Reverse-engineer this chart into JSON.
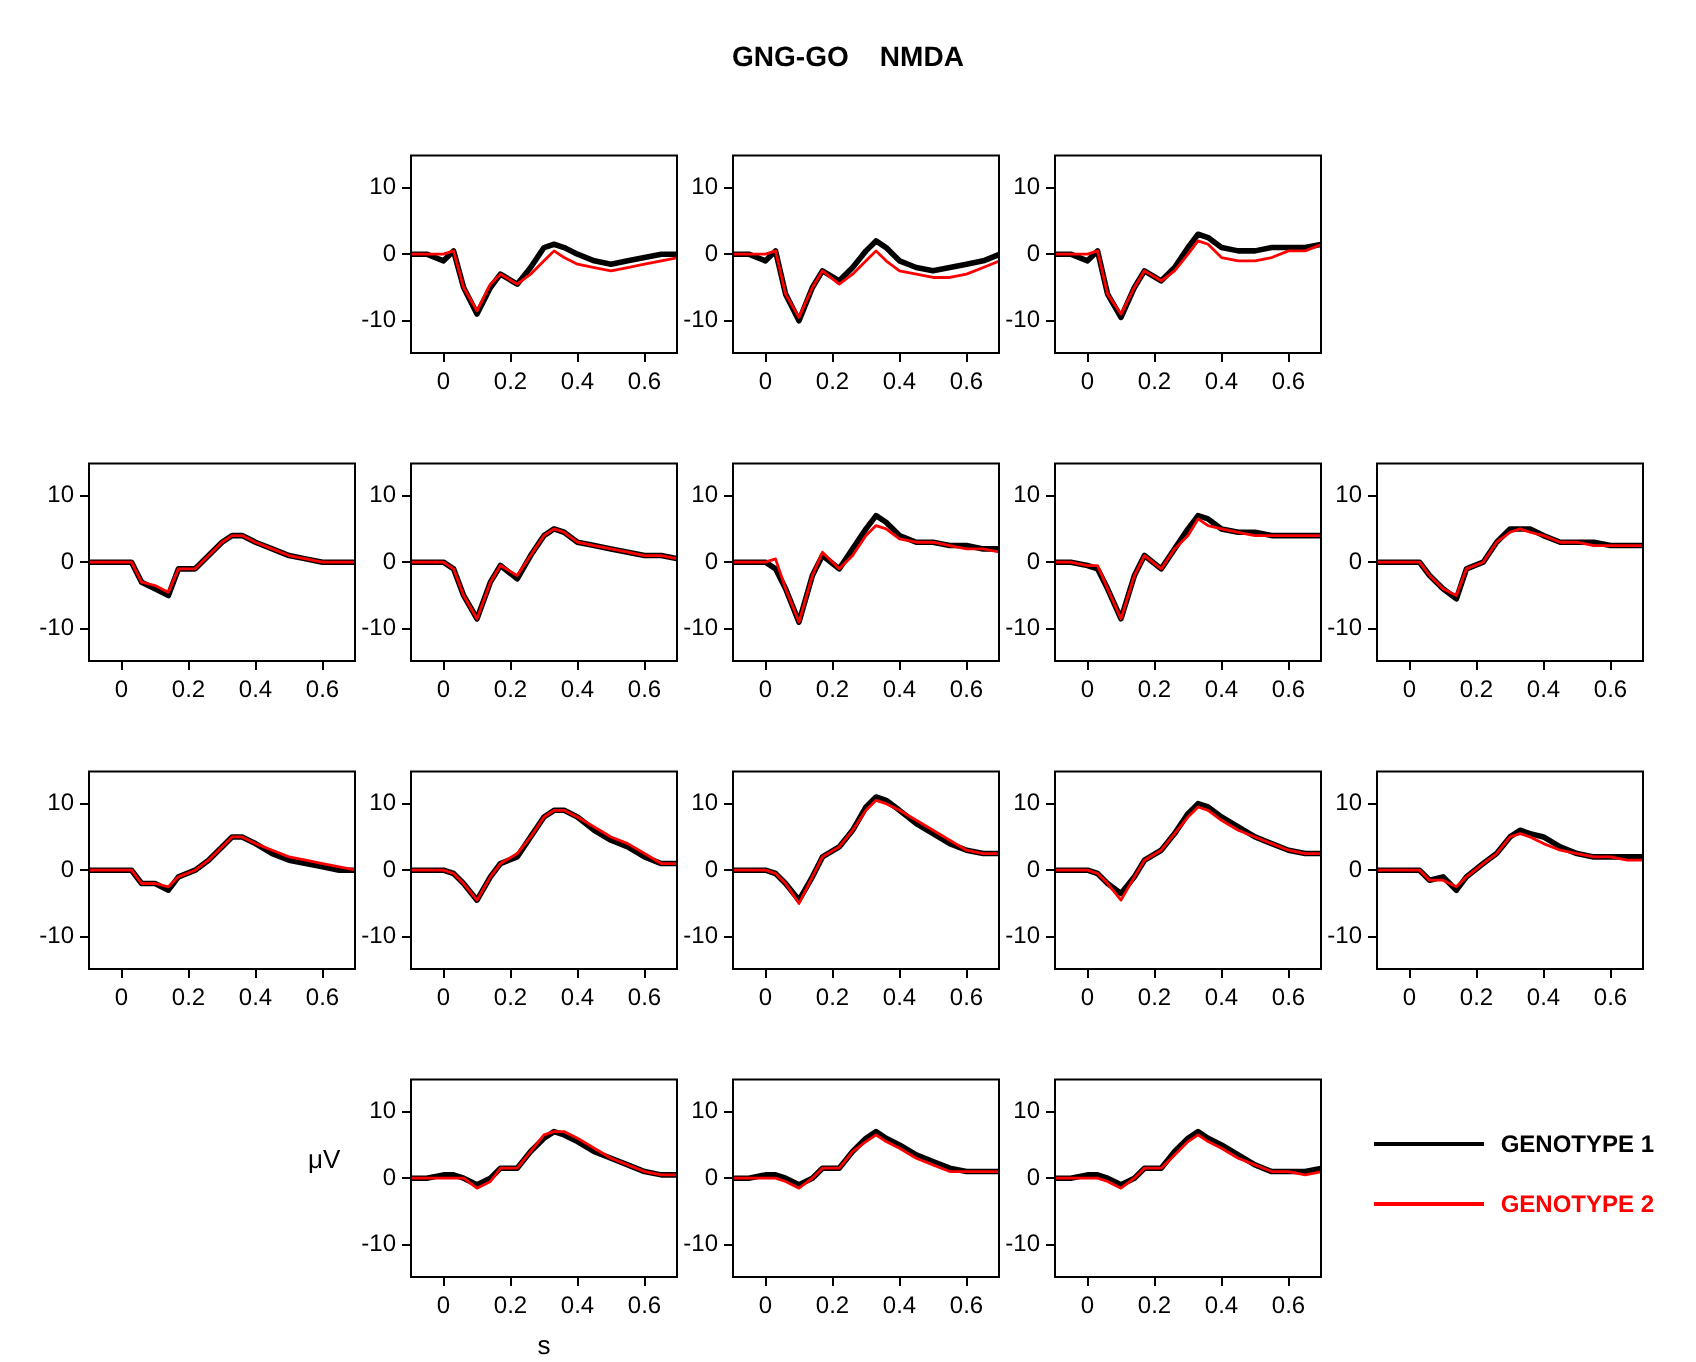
{
  "chart_data": [
    {
      "type": "line",
      "x": [
        -0.1,
        -0.05,
        0,
        0.03,
        0.06,
        0.1,
        0.14,
        0.17,
        0.22,
        0.26,
        0.3,
        0.33,
        0.36,
        0.4,
        0.45,
        0.5,
        0.55,
        0.6,
        0.65,
        0.7
      ],
      "xlim": [
        -0.1,
        0.7
      ],
      "xticks": [
        0,
        0.2,
        0.4,
        0.6
      ],
      "ylim": [
        -15,
        15
      ],
      "yticks": [
        -10,
        0,
        10
      ],
      "grid": false,
      "legend": false,
      "marker": "none",
      "line_style": "solid",
      "series": [
        {
          "color": "#000000",
          "values": [
            0,
            0,
            -1,
            0.5,
            -5,
            -9,
            -5,
            -3,
            -4.5,
            -2,
            1,
            1.5,
            1,
            0,
            -1,
            -1.5,
            -1,
            -0.5,
            0,
            0
          ]
        },
        {
          "color": "#ff0000",
          "values": [
            0,
            0,
            0,
            0.5,
            -5,
            -8.5,
            -4.5,
            -3,
            -4.5,
            -3,
            -1,
            0.5,
            -0.5,
            -1.5,
            -2,
            -2.5,
            -2,
            -1.5,
            -1,
            -0.5
          ]
        }
      ]
    },
    {
      "type": "line",
      "x": [
        -0.1,
        -0.05,
        0,
        0.03,
        0.06,
        0.1,
        0.14,
        0.17,
        0.22,
        0.26,
        0.3,
        0.33,
        0.36,
        0.4,
        0.45,
        0.5,
        0.55,
        0.6,
        0.65,
        0.7
      ],
      "xlim": [
        -0.1,
        0.7
      ],
      "xticks": [
        0,
        0.2,
        0.4,
        0.6
      ],
      "ylim": [
        -15,
        15
      ],
      "yticks": [
        -10,
        0,
        10
      ],
      "grid": false,
      "legend": false,
      "marker": "none",
      "line_style": "solid",
      "title": "GNG-GO    NMDA",
      "series": [
        {
          "color": "#000000",
          "values": [
            0,
            0,
            -1,
            0.5,
            -6,
            -10,
            -5,
            -2.5,
            -4,
            -2,
            0.5,
            2,
            1,
            -1,
            -2,
            -2.5,
            -2,
            -1.5,
            -1,
            0
          ]
        },
        {
          "color": "#ff0000",
          "values": [
            0,
            0,
            0,
            0.5,
            -6,
            -9.5,
            -5,
            -2.5,
            -4.5,
            -3,
            -1,
            0.5,
            -1,
            -2.5,
            -3,
            -3.5,
            -3.5,
            -3,
            -2,
            -1
          ]
        }
      ]
    },
    {
      "type": "line",
      "x": [
        -0.1,
        -0.05,
        0,
        0.03,
        0.06,
        0.1,
        0.14,
        0.17,
        0.22,
        0.26,
        0.3,
        0.33,
        0.36,
        0.4,
        0.45,
        0.5,
        0.55,
        0.6,
        0.65,
        0.7
      ],
      "xlim": [
        -0.1,
        0.7
      ],
      "xticks": [
        0,
        0.2,
        0.4,
        0.6
      ],
      "ylim": [
        -15,
        15
      ],
      "yticks": [
        -10,
        0,
        10
      ],
      "grid": false,
      "legend": false,
      "marker": "none",
      "line_style": "solid",
      "series": [
        {
          "color": "#000000",
          "values": [
            0,
            0,
            -1,
            0.5,
            -6,
            -9.5,
            -5,
            -2.5,
            -4,
            -2,
            1,
            3,
            2.5,
            1,
            0.5,
            0.5,
            1,
            1,
            1,
            1.5
          ]
        },
        {
          "color": "#ff0000",
          "values": [
            0,
            0,
            0,
            0.5,
            -6,
            -9,
            -5,
            -2.5,
            -4,
            -2.5,
            0,
            2,
            1.5,
            -0.5,
            -1,
            -1,
            -0.5,
            0.5,
            0.5,
            1.5
          ]
        }
      ]
    },
    {
      "type": "line",
      "x": [
        -0.1,
        -0.05,
        0,
        0.03,
        0.06,
        0.1,
        0.14,
        0.17,
        0.22,
        0.26,
        0.3,
        0.33,
        0.36,
        0.4,
        0.45,
        0.5,
        0.55,
        0.6,
        0.65,
        0.7
      ],
      "xlim": [
        -0.1,
        0.7
      ],
      "xticks": [
        0,
        0.2,
        0.4,
        0.6
      ],
      "ylim": [
        -15,
        15
      ],
      "yticks": [
        -10,
        0,
        10
      ],
      "grid": false,
      "legend": false,
      "marker": "none",
      "line_style": "solid",
      "series": [
        {
          "color": "#000000",
          "values": [
            0,
            0,
            0,
            0,
            -3,
            -4,
            -5,
            -1,
            -1,
            1,
            3,
            4,
            4,
            3,
            2,
            1,
            0.5,
            0,
            0,
            0
          ]
        },
        {
          "color": "#ff0000",
          "values": [
            0,
            0,
            0,
            0,
            -3,
            -3.5,
            -4.5,
            -1,
            -1,
            1,
            3,
            4,
            4,
            3,
            2,
            1,
            0.5,
            0,
            0,
            0
          ]
        }
      ]
    },
    {
      "type": "line",
      "x": [
        -0.1,
        -0.05,
        0,
        0.03,
        0.06,
        0.1,
        0.14,
        0.17,
        0.22,
        0.26,
        0.3,
        0.33,
        0.36,
        0.4,
        0.45,
        0.5,
        0.55,
        0.6,
        0.65,
        0.7
      ],
      "xlim": [
        -0.1,
        0.7
      ],
      "xticks": [
        0,
        0.2,
        0.4,
        0.6
      ],
      "ylim": [
        -15,
        15
      ],
      "yticks": [
        -10,
        0,
        10
      ],
      "grid": false,
      "legend": false,
      "marker": "none",
      "line_style": "solid",
      "series": [
        {
          "color": "#000000",
          "values": [
            0,
            0,
            0,
            -1,
            -5,
            -8.5,
            -3,
            -0.5,
            -2.5,
            1,
            4,
            5,
            4.5,
            3,
            2.5,
            2,
            1.5,
            1,
            1,
            0.5
          ]
        },
        {
          "color": "#ff0000",
          "values": [
            0,
            0,
            0,
            -1,
            -5,
            -8.5,
            -3,
            -0.5,
            -2,
            1,
            4,
            5,
            4.5,
            3,
            2.5,
            2,
            1.5,
            1,
            1,
            0.5
          ]
        }
      ]
    },
    {
      "type": "line",
      "x": [
        -0.1,
        -0.05,
        0,
        0.03,
        0.06,
        0.1,
        0.14,
        0.17,
        0.22,
        0.26,
        0.3,
        0.33,
        0.36,
        0.4,
        0.45,
        0.5,
        0.55,
        0.6,
        0.65,
        0.7
      ],
      "xlim": [
        -0.1,
        0.7
      ],
      "xticks": [
        0,
        0.2,
        0.4,
        0.6
      ],
      "ylim": [
        -15,
        15
      ],
      "yticks": [
        -10,
        0,
        10
      ],
      "grid": false,
      "legend": false,
      "marker": "none",
      "line_style": "solid",
      "series": [
        {
          "color": "#000000",
          "values": [
            0,
            0,
            0,
            -1,
            -4,
            -9,
            -2,
            1,
            -1,
            2,
            5,
            7,
            6,
            4,
            3,
            3,
            2.5,
            2.5,
            2,
            2
          ]
        },
        {
          "color": "#ff0000",
          "values": [
            0,
            0,
            0,
            0.5,
            -4,
            -9,
            -2,
            1.5,
            -1,
            1,
            4,
            5.5,
            5,
            3.5,
            3,
            3,
            2.5,
            2,
            2,
            1.5
          ]
        }
      ]
    },
    {
      "type": "line",
      "x": [
        -0.1,
        -0.05,
        0,
        0.03,
        0.06,
        0.1,
        0.14,
        0.17,
        0.22,
        0.26,
        0.3,
        0.33,
        0.36,
        0.4,
        0.45,
        0.5,
        0.55,
        0.6,
        0.65,
        0.7
      ],
      "xlim": [
        -0.1,
        0.7
      ],
      "xticks": [
        0,
        0.2,
        0.4,
        0.6
      ],
      "ylim": [
        -15,
        15
      ],
      "yticks": [
        -10,
        0,
        10
      ],
      "grid": false,
      "legend": false,
      "marker": "none",
      "line_style": "solid",
      "series": [
        {
          "color": "#000000",
          "values": [
            0,
            0,
            -0.5,
            -1,
            -4,
            -8.5,
            -2,
            1,
            -1,
            2,
            5,
            7,
            6.5,
            5,
            4.5,
            4.5,
            4,
            4,
            4,
            4
          ]
        },
        {
          "color": "#ff0000",
          "values": [
            0,
            0,
            -0.5,
            -0.5,
            -4,
            -8.5,
            -2,
            1,
            -1,
            2,
            4,
            6.5,
            5.5,
            5,
            4.5,
            4,
            4,
            4,
            4,
            4
          ]
        }
      ]
    },
    {
      "type": "line",
      "x": [
        -0.1,
        -0.05,
        0,
        0.03,
        0.06,
        0.1,
        0.14,
        0.17,
        0.22,
        0.26,
        0.3,
        0.33,
        0.36,
        0.4,
        0.45,
        0.5,
        0.55,
        0.6,
        0.65,
        0.7
      ],
      "xlim": [
        -0.1,
        0.7
      ],
      "xticks": [
        0,
        0.2,
        0.4,
        0.6
      ],
      "ylim": [
        -15,
        15
      ],
      "yticks": [
        -10,
        0,
        10
      ],
      "grid": false,
      "legend": false,
      "marker": "none",
      "line_style": "solid",
      "series": [
        {
          "color": "#000000",
          "values": [
            0,
            0,
            0,
            0,
            -2,
            -4,
            -5.5,
            -1,
            0,
            3,
            5,
            5,
            5,
            4,
            3,
            3,
            3,
            2.5,
            2.5,
            2.5
          ]
        },
        {
          "color": "#ff0000",
          "values": [
            0,
            0,
            0,
            0,
            -2,
            -4,
            -5,
            -1,
            0,
            3,
            4.5,
            5,
            4.5,
            4,
            3,
            3,
            2.5,
            2.5,
            2.5,
            2.5
          ]
        }
      ]
    },
    {
      "type": "line",
      "x": [
        -0.1,
        -0.05,
        0,
        0.03,
        0.06,
        0.1,
        0.14,
        0.17,
        0.22,
        0.26,
        0.3,
        0.33,
        0.36,
        0.4,
        0.45,
        0.5,
        0.55,
        0.6,
        0.65,
        0.7
      ],
      "xlim": [
        -0.1,
        0.7
      ],
      "xticks": [
        0,
        0.2,
        0.4,
        0.6
      ],
      "ylim": [
        -15,
        15
      ],
      "yticks": [
        -10,
        0,
        10
      ],
      "grid": false,
      "legend": false,
      "marker": "none",
      "line_style": "solid",
      "series": [
        {
          "color": "#000000",
          "values": [
            0,
            0,
            0,
            0,
            -2,
            -2,
            -3,
            -1,
            0,
            1.5,
            3.5,
            5,
            5,
            4,
            2.5,
            1.5,
            1,
            0.5,
            0,
            0
          ]
        },
        {
          "color": "#ff0000",
          "values": [
            0,
            0,
            0,
            0,
            -2,
            -2,
            -2.5,
            -1,
            0,
            1.5,
            3.5,
            5,
            5,
            4,
            3,
            2,
            1.5,
            1,
            0.5,
            0
          ]
        }
      ]
    },
    {
      "type": "line",
      "x": [
        -0.1,
        -0.05,
        0,
        0.03,
        0.06,
        0.1,
        0.14,
        0.17,
        0.22,
        0.26,
        0.3,
        0.33,
        0.36,
        0.4,
        0.45,
        0.5,
        0.55,
        0.6,
        0.65,
        0.7
      ],
      "xlim": [
        -0.1,
        0.7
      ],
      "xticks": [
        0,
        0.2,
        0.4,
        0.6
      ],
      "ylim": [
        -15,
        15
      ],
      "yticks": [
        -10,
        0,
        10
      ],
      "grid": false,
      "legend": false,
      "marker": "none",
      "line_style": "solid",
      "series": [
        {
          "color": "#000000",
          "values": [
            0,
            0,
            0,
            -0.5,
            -2,
            -4.5,
            -1,
            1,
            2,
            5,
            8,
            9,
            9,
            8,
            6,
            4.5,
            3.5,
            2,
            1,
            1
          ]
        },
        {
          "color": "#ff0000",
          "values": [
            0,
            0,
            0,
            -0.5,
            -2,
            -4.5,
            -1,
            1,
            2.5,
            5,
            8,
            9,
            9,
            8,
            6.5,
            5,
            4,
            2.5,
            1,
            1
          ]
        }
      ]
    },
    {
      "type": "line",
      "x": [
        -0.1,
        -0.05,
        0,
        0.03,
        0.06,
        0.1,
        0.14,
        0.17,
        0.22,
        0.26,
        0.3,
        0.33,
        0.36,
        0.4,
        0.45,
        0.5,
        0.55,
        0.6,
        0.65,
        0.7
      ],
      "xlim": [
        -0.1,
        0.7
      ],
      "xticks": [
        0,
        0.2,
        0.4,
        0.6
      ],
      "ylim": [
        -15,
        15
      ],
      "yticks": [
        -10,
        0,
        10
      ],
      "grid": false,
      "legend": false,
      "marker": "none",
      "line_style": "solid",
      "series": [
        {
          "color": "#000000",
          "values": [
            0,
            0,
            0,
            -0.5,
            -2,
            -4.5,
            -1,
            2,
            3.5,
            6,
            9.5,
            11,
            10.5,
            9,
            7,
            5.5,
            4,
            3,
            2.5,
            2.5
          ]
        },
        {
          "color": "#ff0000",
          "values": [
            0,
            0,
            0,
            -0.5,
            -2,
            -5,
            -1,
            2,
            3.5,
            6,
            9,
            10.5,
            10,
            9,
            7.5,
            6,
            4.5,
            3,
            2.5,
            2.5
          ]
        }
      ]
    },
    {
      "type": "line",
      "x": [
        -0.1,
        -0.05,
        0,
        0.03,
        0.06,
        0.1,
        0.14,
        0.17,
        0.22,
        0.26,
        0.3,
        0.33,
        0.36,
        0.4,
        0.45,
        0.5,
        0.55,
        0.6,
        0.65,
        0.7
      ],
      "xlim": [
        -0.1,
        0.7
      ],
      "xticks": [
        0,
        0.2,
        0.4,
        0.6
      ],
      "ylim": [
        -15,
        15
      ],
      "yticks": [
        -10,
        0,
        10
      ],
      "grid": false,
      "legend": false,
      "marker": "none",
      "line_style": "solid",
      "series": [
        {
          "color": "#000000",
          "values": [
            0,
            0,
            0,
            -0.5,
            -2,
            -3.5,
            -1,
            1.5,
            3,
            5.5,
            8.5,
            10,
            9.5,
            8,
            6.5,
            5,
            4,
            3,
            2.5,
            2.5
          ]
        },
        {
          "color": "#ff0000",
          "values": [
            0,
            0,
            0,
            -0.5,
            -2,
            -4.5,
            -1,
            1.5,
            3,
            5.5,
            8,
            9.5,
            9,
            7.5,
            6,
            5,
            4,
            3,
            2.5,
            2.5
          ]
        }
      ]
    },
    {
      "type": "line",
      "x": [
        -0.1,
        -0.05,
        0,
        0.03,
        0.06,
        0.1,
        0.14,
        0.17,
        0.22,
        0.26,
        0.3,
        0.33,
        0.36,
        0.4,
        0.45,
        0.5,
        0.55,
        0.6,
        0.65,
        0.7
      ],
      "xlim": [
        -0.1,
        0.7
      ],
      "xticks": [
        0,
        0.2,
        0.4,
        0.6
      ],
      "ylim": [
        -15,
        15
      ],
      "yticks": [
        -10,
        0,
        10
      ],
      "grid": false,
      "legend": false,
      "marker": "none",
      "line_style": "solid",
      "series": [
        {
          "color": "#000000",
          "values": [
            0,
            0,
            0,
            0,
            -1.5,
            -1,
            -3,
            -1,
            1,
            2.5,
            5,
            6,
            5.5,
            5,
            3.5,
            2.5,
            2,
            2,
            2,
            2
          ]
        },
        {
          "color": "#ff0000",
          "values": [
            0,
            0,
            0,
            0,
            -1.5,
            -1.5,
            -2.5,
            -1,
            1,
            2.5,
            5,
            5.5,
            5,
            4,
            3,
            2.5,
            2,
            2,
            1.5,
            1.5
          ]
        }
      ]
    },
    {
      "type": "line",
      "x": [
        -0.1,
        -0.05,
        0,
        0.03,
        0.06,
        0.1,
        0.14,
        0.17,
        0.22,
        0.26,
        0.3,
        0.33,
        0.36,
        0.4,
        0.45,
        0.5,
        0.55,
        0.6,
        0.65,
        0.7
      ],
      "xlim": [
        -0.1,
        0.7
      ],
      "xticks": [
        0,
        0.2,
        0.4,
        0.6
      ],
      "ylim": [
        -15,
        15
      ],
      "yticks": [
        -10,
        0,
        10
      ],
      "xlabel": "s",
      "ylabel": "μV",
      "grid": false,
      "legend": false,
      "marker": "none",
      "line_style": "solid",
      "series": [
        {
          "color": "#000000",
          "values": [
            0,
            0,
            0.5,
            0.5,
            0,
            -1,
            0,
            1.5,
            1.5,
            4,
            6,
            7,
            6.5,
            5.5,
            4,
            3,
            2,
            1,
            0.5,
            0.5
          ]
        },
        {
          "color": "#ff0000",
          "values": [
            0,
            0,
            0,
            0,
            0,
            -1.5,
            -0.5,
            1.5,
            1.5,
            4,
            6.5,
            7,
            7,
            6,
            4.5,
            3,
            2,
            1,
            0.5,
            0.5
          ]
        }
      ]
    },
    {
      "type": "line",
      "x": [
        -0.1,
        -0.05,
        0,
        0.03,
        0.06,
        0.1,
        0.14,
        0.17,
        0.22,
        0.26,
        0.3,
        0.33,
        0.36,
        0.4,
        0.45,
        0.5,
        0.55,
        0.6,
        0.65,
        0.7
      ],
      "xlim": [
        -0.1,
        0.7
      ],
      "xticks": [
        0,
        0.2,
        0.4,
        0.6
      ],
      "ylim": [
        -15,
        15
      ],
      "yticks": [
        -10,
        0,
        10
      ],
      "grid": false,
      "legend": false,
      "marker": "none",
      "line_style": "solid",
      "series": [
        {
          "color": "#000000",
          "values": [
            0,
            0,
            0.5,
            0.5,
            0,
            -1,
            0,
            1.5,
            1.5,
            4,
            6,
            7,
            6,
            5,
            3.5,
            2.5,
            1.5,
            1,
            1,
            1
          ]
        },
        {
          "color": "#ff0000",
          "values": [
            0,
            0,
            0,
            0,
            -0.5,
            -1.5,
            0,
            1.5,
            1.5,
            4,
            5.5,
            6.5,
            5.5,
            4.5,
            3,
            2,
            1,
            1,
            1,
            1
          ]
        }
      ]
    },
    {
      "type": "line",
      "x": [
        -0.1,
        -0.05,
        0,
        0.03,
        0.06,
        0.1,
        0.14,
        0.17,
        0.22,
        0.26,
        0.3,
        0.33,
        0.36,
        0.4,
        0.45,
        0.5,
        0.55,
        0.6,
        0.65,
        0.7
      ],
      "xlim": [
        -0.1,
        0.7
      ],
      "xticks": [
        0,
        0.2,
        0.4,
        0.6
      ],
      "ylim": [
        -15,
        15
      ],
      "yticks": [
        -10,
        0,
        10
      ],
      "grid": false,
      "legend": "right",
      "marker": "none",
      "line_style": "solid",
      "series": [
        {
          "name": "GENOTYPE 1",
          "color": "#000000",
          "values": [
            0,
            0,
            0.5,
            0.5,
            0,
            -1,
            0,
            1.5,
            1.5,
            4,
            6,
            7,
            6,
            5,
            3.5,
            2,
            1,
            1,
            1,
            1.5
          ]
        },
        {
          "name": "GENOTYPE 2",
          "color": "#ff0000",
          "values": [
            0,
            0,
            0,
            0,
            -0.5,
            -1.5,
            0,
            1.5,
            1.5,
            3.5,
            5.5,
            6.5,
            5.5,
            4.5,
            3,
            2,
            1,
            1,
            0.5,
            1
          ]
        }
      ]
    }
  ]
}
